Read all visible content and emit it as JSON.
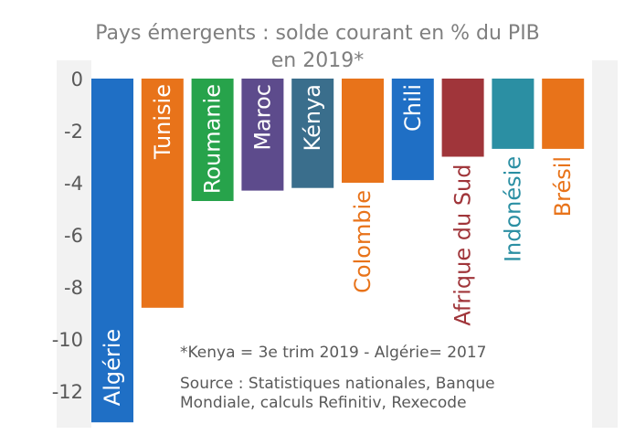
{
  "chart_data": {
    "type": "bar",
    "title_line1": "Pays émergents : solde courant en % du PIB",
    "title_line2": "en 2019*",
    "categories": [
      "Algérie",
      "Tunisie",
      "Roumanie",
      "Maroc",
      "Kénya",
      "Colombie",
      "Chili",
      "Afrique du Sud",
      "Indonésie",
      "Brésil"
    ],
    "values": [
      -13.2,
      -8.8,
      -4.7,
      -4.3,
      -4.2,
      -4.0,
      -3.9,
      -3.0,
      -2.7,
      -2.7
    ],
    "colors": [
      "#1f6fc5",
      "#e8731a",
      "#27a34b",
      "#5d4b8c",
      "#3a6e8c",
      "#e8731a",
      "#1f6fc5",
      "#a0353a",
      "#2b8fa3",
      "#e8731a"
    ],
    "label_colors": [
      "#ffffff",
      "#ffffff",
      "#ffffff",
      "#ffffff",
      "#ffffff",
      "#e8731a",
      "#ffffff",
      "#a0353a",
      "#2b8fa3",
      "#e8731a"
    ],
    "ylim": [
      -13.2,
      0
    ],
    "yticks": [
      0,
      -2,
      -4,
      -6,
      -8,
      -10,
      -12
    ],
    "ytick_labels": [
      "0",
      "-2",
      "-4",
      "-6",
      "-8",
      "-10",
      "-12"
    ],
    "xlabel": "",
    "ylabel": "",
    "legend": "none"
  },
  "notes": {
    "footnote": "*Kenya = 3e trim 2019 - Algérie= 2017",
    "source_line1": "Source :  Statistiques nationales, Banque",
    "source_line2": "Mondiale, calculs Refinitiv, Rexecode"
  },
  "colors": {
    "title": "#7f7f7f",
    "ticks": "#595959",
    "plot_bg": "#f2f2f2"
  }
}
